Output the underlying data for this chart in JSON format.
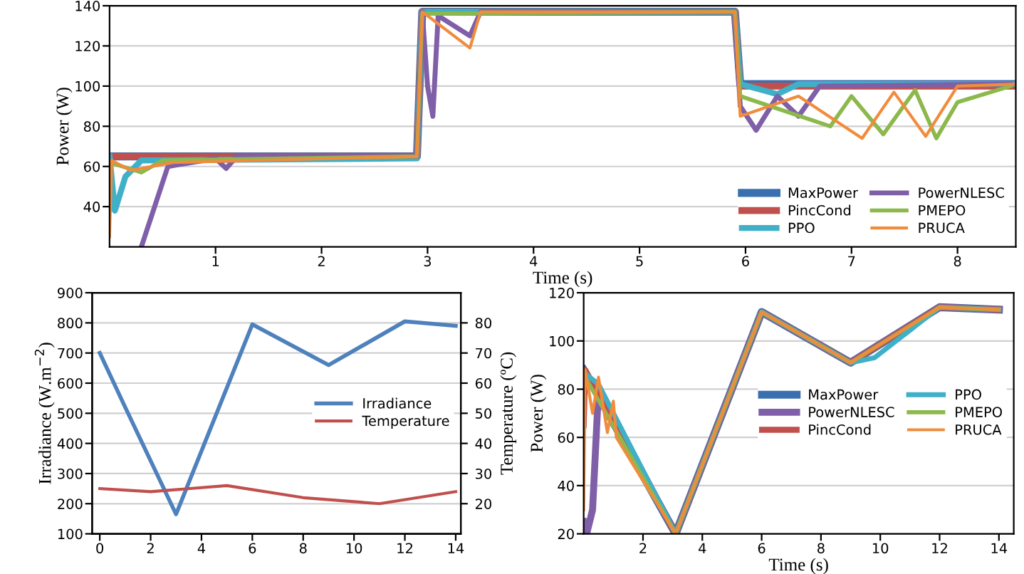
{
  "chart_data": [
    {
      "type": "line",
      "xlabel": "Time (s)",
      "ylabel": "Power (W)",
      "xlim": [
        0,
        8.55
      ],
      "xticks": [
        1,
        2,
        3,
        4,
        5,
        6,
        7,
        8
      ],
      "ylim": [
        20,
        140
      ],
      "yticks": [
        40,
        60,
        80,
        100,
        120,
        140
      ],
      "grid": "y",
      "legend": "bottom right",
      "series": [
        {
          "name": "MaxPower",
          "color": "#3a6fb0",
          "x": [
            0,
            2.9,
            2.95,
            5.9,
            5.95,
            8.55
          ],
          "values": [
            65,
            65,
            137,
            137,
            101,
            101
          ]
        },
        {
          "name": "PincCond",
          "color": "#c0504d",
          "x": [
            0,
            2.9,
            2.95,
            5.9,
            5.95,
            8.55
          ],
          "values": [
            65,
            65,
            137,
            137,
            100,
            100
          ]
        },
        {
          "name": "PPO",
          "color": "#3fb0c8",
          "x": [
            0,
            0.05,
            0.15,
            0.3,
            2.9,
            2.95,
            5.9,
            5.95,
            6.3,
            6.5,
            8.55
          ],
          "values": [
            65,
            38,
            55,
            63,
            64,
            137,
            137,
            101,
            96,
            101,
            101
          ]
        },
        {
          "name": "PowerNLESC",
          "color": "#7f5fa8",
          "x": [
            0.3,
            0.55,
            1,
            1.1,
            1.2,
            2.9,
            2.95,
            3.0,
            3.05,
            3.1,
            3.4,
            3.5,
            5.9,
            5.95,
            6.1,
            6.3,
            6.5,
            6.7,
            8.5
          ],
          "values": [
            20,
            60,
            64,
            59,
            65,
            65,
            137,
            100,
            85,
            135,
            125,
            137,
            137,
            90,
            78,
            95,
            85,
            100,
            101
          ]
        },
        {
          "name": "PMEPO",
          "color": "#8cb84c",
          "x": [
            0,
            0.3,
            0.5,
            2.9,
            2.95,
            5.9,
            5.95,
            6.8,
            7.0,
            7.3,
            7.6,
            7.8,
            8.0,
            8.5
          ],
          "values": [
            62,
            57,
            63,
            65,
            136,
            137,
            95,
            80,
            95,
            76,
            98,
            74,
            92,
            100
          ]
        },
        {
          "name": "PRUCA",
          "color": "#f08c3c",
          "x": [
            0,
            0.02,
            0.2,
            0.6,
            2.9,
            2.95,
            3.4,
            3.5,
            5.9,
            5.95,
            6.5,
            7.1,
            7.4,
            7.7,
            8.0,
            8.55
          ],
          "values": [
            25,
            63,
            58,
            62,
            65,
            137,
            119,
            137,
            137,
            85,
            95,
            74,
            97,
            75,
            100,
            101
          ]
        }
      ]
    },
    {
      "type": "line",
      "ylabel": "Irradiance (W.m$^{−2}$)",
      "y2label": "Temperature (ºC)",
      "xlim": [
        -0.3,
        14.2
      ],
      "xticks": [
        0,
        2,
        4,
        6,
        8,
        10,
        12,
        14
      ],
      "ylim": [
        100,
        900
      ],
      "yticks": [
        100,
        200,
        300,
        400,
        500,
        600,
        700,
        800,
        900
      ],
      "y2lim": [
        10,
        90
      ],
      "y2ticks": [
        20,
        30,
        40,
        50,
        60,
        70,
        80
      ],
      "grid": "y",
      "legend": "right",
      "series": [
        {
          "name": "Irradiance",
          "color": "#4f81bd",
          "x": [
            0,
            1,
            3,
            6,
            9,
            12,
            14
          ],
          "values": [
            700,
            520,
            165,
            795,
            660,
            805,
            790
          ]
        },
        {
          "name": "Temperature",
          "color": "#c0504d",
          "axis": "y2",
          "x": [
            0,
            2,
            5,
            8,
            11,
            14
          ],
          "values": [
            25,
            24,
            26,
            22,
            20,
            24
          ]
        }
      ]
    },
    {
      "type": "line",
      "xlabel": "Time (s)",
      "ylabel": "Power (W)",
      "xlim": [
        0,
        14.5
      ],
      "xticks": [
        2,
        4,
        6,
        8,
        10,
        12,
        14
      ],
      "ylim": [
        20,
        120
      ],
      "yticks": [
        20,
        40,
        60,
        80,
        100,
        120
      ],
      "grid": "y",
      "legend": "right",
      "series": [
        {
          "name": "MaxPower",
          "color": "#3a6fb0",
          "x": [
            0,
            3.1,
            6,
            9,
            12,
            14
          ],
          "values": [
            88,
            20,
            112,
            91,
            114,
            113
          ]
        },
        {
          "name": "PowerNLESC",
          "color": "#7f5fa8",
          "x": [
            0,
            0.1,
            0.3,
            0.5,
            0.7,
            3.1,
            6,
            9,
            12,
            14
          ],
          "values": [
            25,
            20,
            30,
            80,
            75,
            20,
            112,
            91,
            114,
            113
          ]
        },
        {
          "name": "PincCond",
          "color": "#c0504d",
          "x": [
            0,
            0.05,
            3.1,
            6,
            9,
            12,
            14
          ],
          "values": [
            65,
            88,
            20,
            112,
            91,
            114,
            113
          ]
        },
        {
          "name": "PPO",
          "color": "#3fb0c8",
          "x": [
            0,
            0.5,
            3.1,
            6,
            9,
            9.8,
            12,
            14
          ],
          "values": [
            87,
            82,
            20,
            112,
            91,
            93,
            114,
            113
          ]
        },
        {
          "name": "PMEPO",
          "color": "#8cb84c",
          "x": [
            0,
            3.1,
            6,
            9,
            12,
            14
          ],
          "values": [
            86,
            20,
            112,
            91,
            114,
            113
          ]
        },
        {
          "name": "PRUCA",
          "color": "#f08c3c",
          "x": [
            0,
            0.05,
            0.3,
            0.5,
            0.8,
            1.0,
            1.1,
            3.1,
            6,
            9,
            12,
            14
          ],
          "values": [
            30,
            88,
            70,
            85,
            62,
            75,
            60,
            20,
            112,
            91,
            114,
            113
          ]
        }
      ]
    }
  ]
}
